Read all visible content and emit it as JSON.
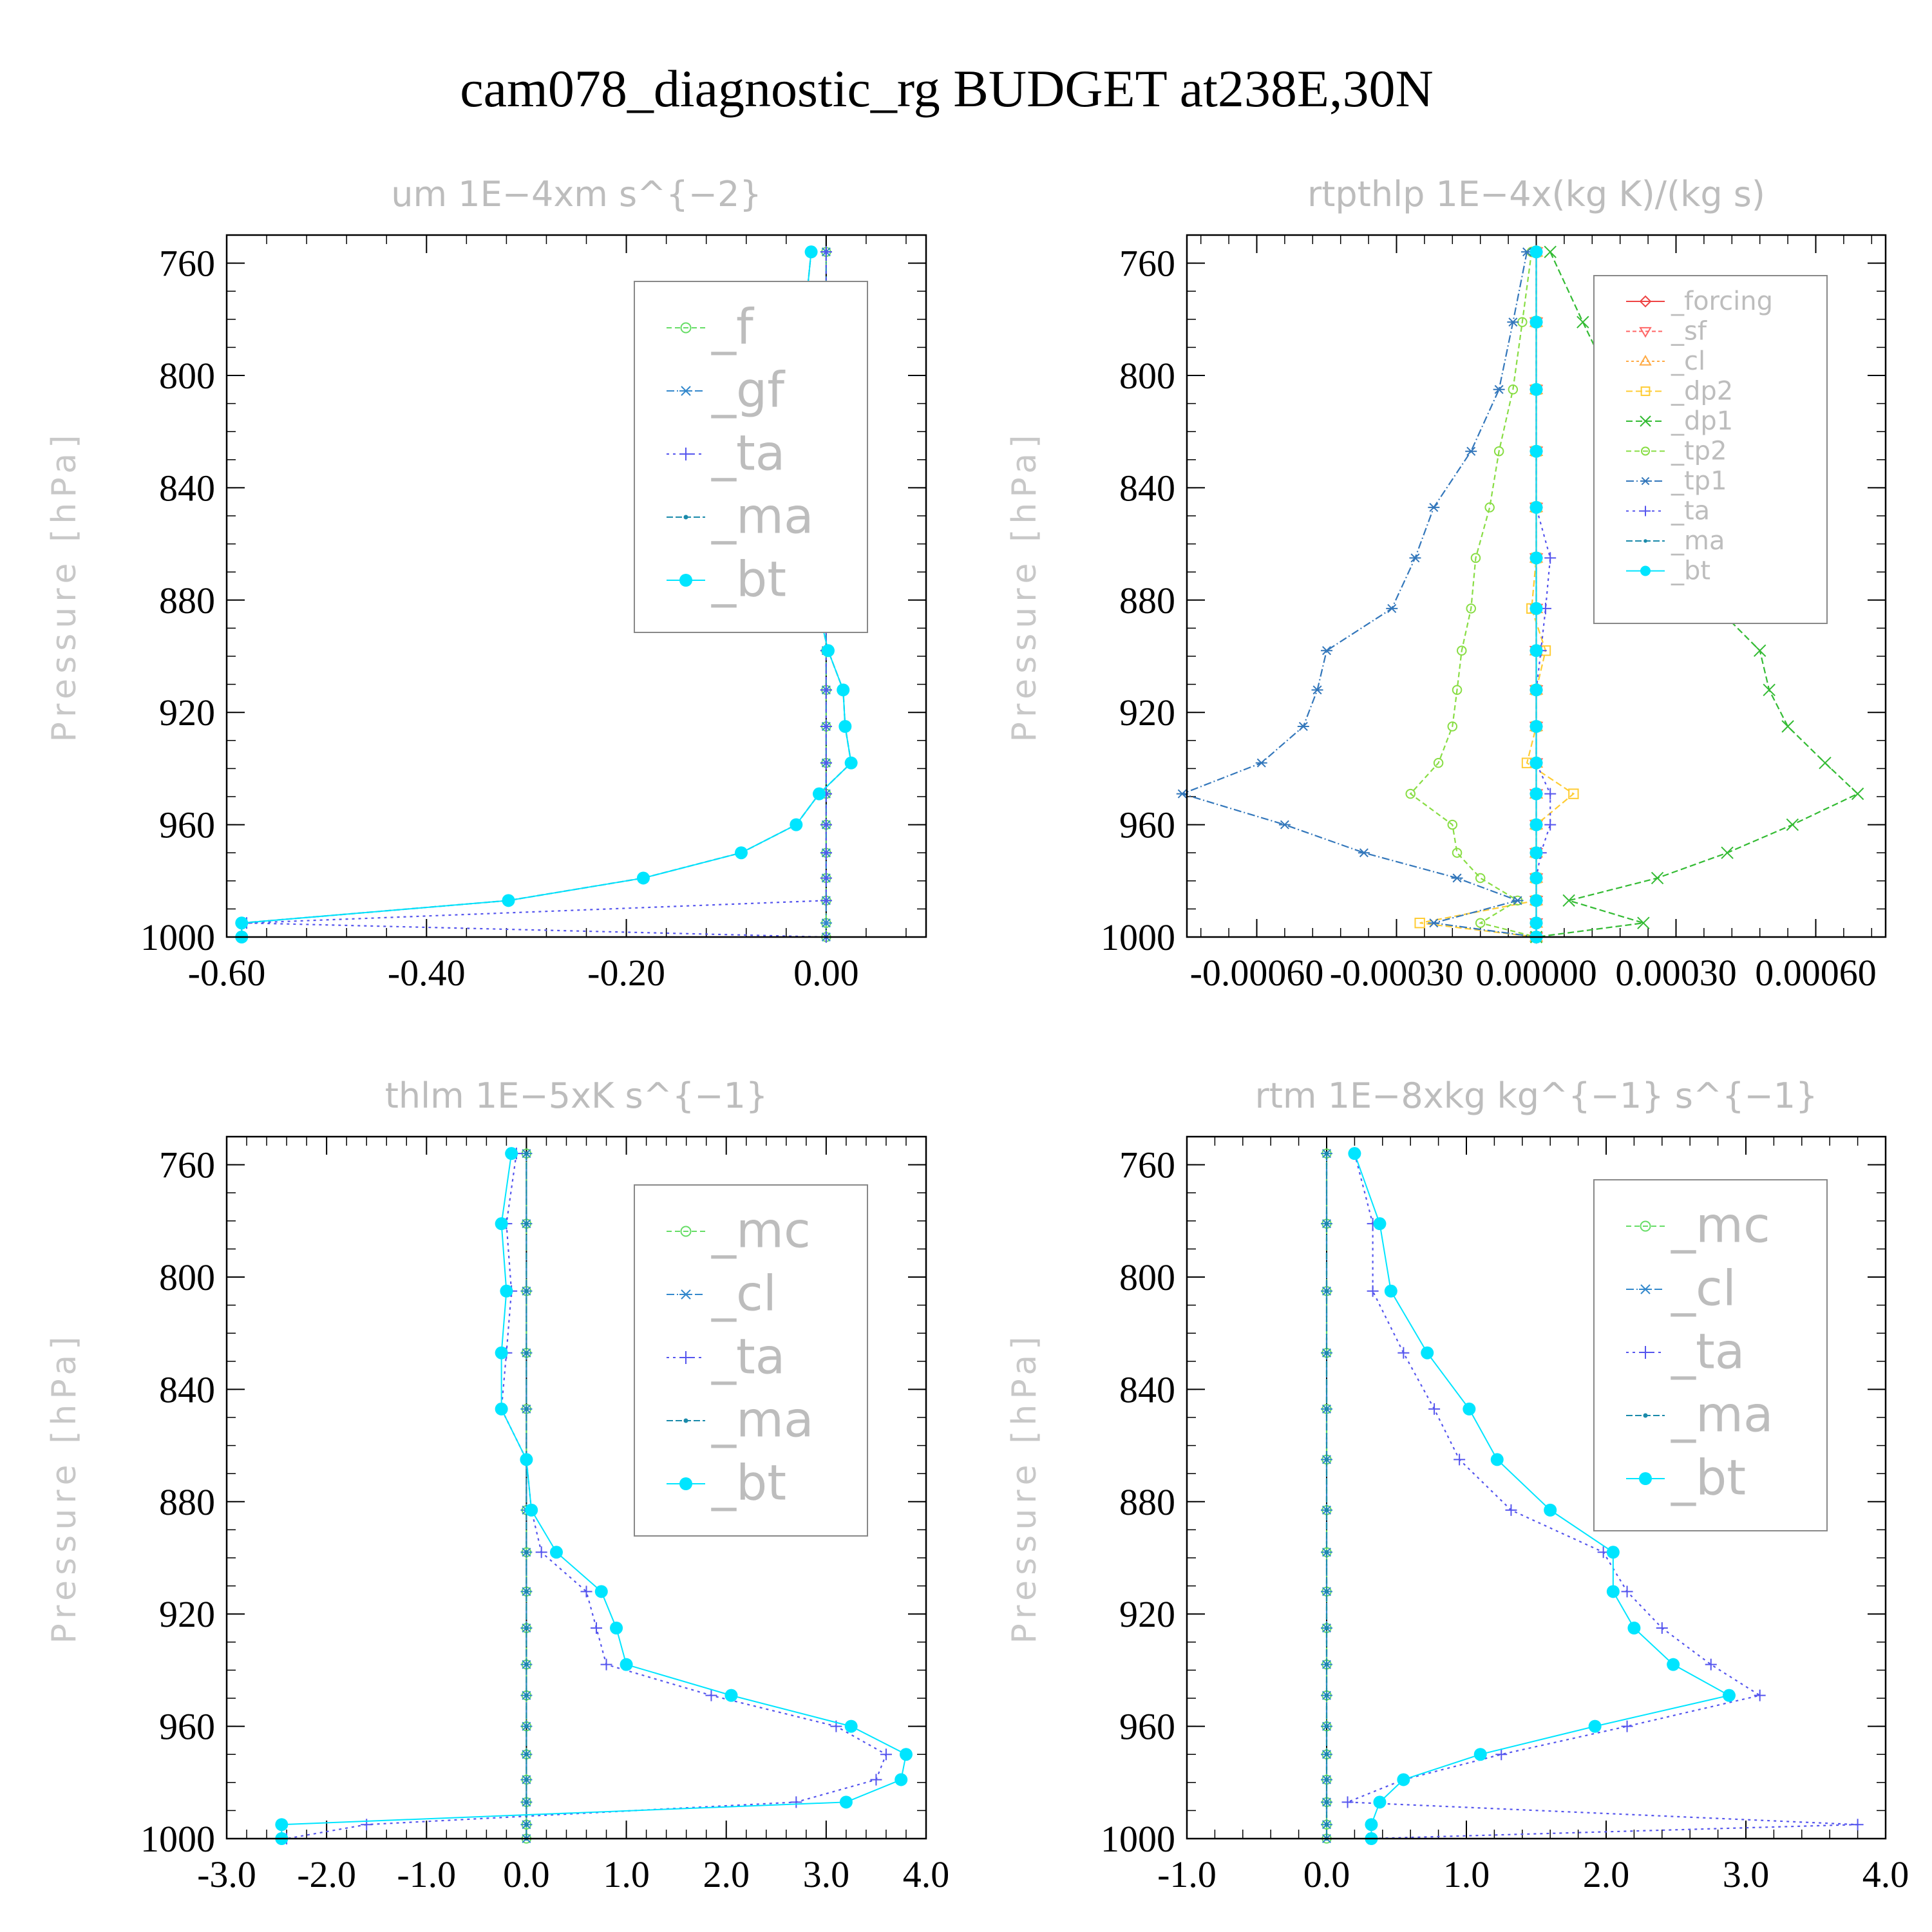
{
  "title": "cam078_diagnostic_rg  BUDGET at238E,30N",
  "chart_data": [
    {
      "type": "line",
      "title": "um   1E−4xm s^{−2}",
      "ylabel": "Pressure [hPa]",
      "xlim": [
        -0.6,
        0.1
      ],
      "ylim": [
        750,
        1000
      ],
      "y_reversed": true,
      "xticks": [
        "-0.60",
        "-0.40",
        "-0.20",
        "0.00"
      ],
      "xtick_values": [
        -0.6,
        -0.4,
        -0.2,
        0.0
      ],
      "yticks": [
        "760",
        "800",
        "840",
        "880",
        "920",
        "960",
        "1000"
      ],
      "ytick_values": [
        760,
        800,
        840,
        880,
        920,
        960,
        1000
      ],
      "levels": [
        756,
        781,
        805,
        827,
        847,
        865,
        883,
        898,
        912,
        925,
        938,
        949,
        960,
        970,
        979,
        987,
        995,
        1000
      ],
      "series": [
        {
          "name": "_f",
          "color": "#66dd66",
          "marker": "circle-open",
          "dash": "8,5",
          "values": [
            0,
            0,
            0,
            0,
            0,
            0,
            0,
            0,
            0,
            0,
            0,
            0,
            0,
            0,
            0,
            0,
            0,
            0
          ]
        },
        {
          "name": "_gf",
          "color": "#3388cc",
          "marker": "star",
          "dash": "12,4,2,4",
          "values": [
            0,
            0,
            0,
            0,
            0,
            0,
            0,
            0,
            0,
            0,
            0,
            0,
            0,
            0,
            0,
            0,
            0,
            0
          ]
        },
        {
          "name": "_ta",
          "color": "#5555ee",
          "marker": "plus",
          "dash": "4,6",
          "values": [
            0,
            0,
            0,
            0,
            0,
            0,
            0,
            0,
            0,
            0,
            0,
            0,
            0,
            0,
            0,
            0,
            -0.58,
            0
          ]
        },
        {
          "name": "_ma",
          "color": "#1a8aaa",
          "marker": "dot",
          "dash": "10,4",
          "values": [
            -0.015,
            -0.022,
            -0.027,
            -0.025,
            -0.026,
            -0.024,
            -0.008,
            0.002,
            0.017,
            0.019,
            0.025,
            -0.007,
            -0.03,
            -0.085,
            -0.183,
            -0.318,
            -0.585,
            -0.585
          ]
        },
        {
          "name": "_bt",
          "color": "#00e5ff",
          "marker": "filled-circle",
          "dash": "",
          "values": [
            -0.015,
            -0.022,
            -0.027,
            -0.025,
            -0.026,
            -0.024,
            -0.008,
            0.002,
            0.017,
            0.019,
            0.025,
            -0.007,
            -0.03,
            -0.085,
            -0.183,
            -0.318,
            -0.585,
            -0.585
          ]
        }
      ]
    },
    {
      "type": "line",
      "title": "rtpthlp   1E−4x(kg K)/(kg s)",
      "ylabel": "Pressure [hPa]",
      "xlim": [
        -0.00075,
        0.00075
      ],
      "ylim": [
        750,
        1000
      ],
      "y_reversed": true,
      "xticks": [
        "-0.00060",
        "-0.00030",
        "0.00000",
        "0.00030",
        "0.00060"
      ],
      "xtick_values": [
        -0.0006,
        -0.0003,
        0.0,
        0.0003,
        0.0006
      ],
      "yticks": [
        "760",
        "800",
        "840",
        "880",
        "920",
        "960",
        "1000"
      ],
      "ytick_values": [
        760,
        800,
        840,
        880,
        920,
        960,
        1000
      ],
      "levels": [
        756,
        781,
        805,
        827,
        847,
        865,
        883,
        898,
        912,
        925,
        938,
        949,
        960,
        970,
        979,
        987,
        995,
        1000
      ],
      "series": [
        {
          "name": "_forcing",
          "color": "#ee4444",
          "marker": "diamond",
          "dash": "",
          "values": [
            0,
            0,
            0,
            0,
            0,
            0,
            0,
            0,
            0,
            0,
            0,
            0,
            0,
            0,
            0,
            0,
            0,
            0
          ]
        },
        {
          "name": "_sf",
          "color": "#ff6666",
          "marker": "triangle-down",
          "dash": "6,4",
          "values": [
            0,
            0,
            0,
            0,
            0,
            0,
            0,
            0,
            0,
            0,
            0,
            0,
            0,
            0,
            0,
            0,
            0,
            0
          ]
        },
        {
          "name": "_cl",
          "color": "#ffaa44",
          "marker": "triangle-up",
          "dash": "4,4",
          "values": [
            0,
            0,
            0,
            0,
            0,
            0,
            0,
            0,
            0,
            0,
            0,
            0,
            0,
            0,
            0,
            0,
            0,
            0
          ]
        },
        {
          "name": "_dp2",
          "color": "#ffcc33",
          "marker": "square",
          "dash": "10,5",
          "values": [
            0,
            0,
            0,
            0,
            0,
            0,
            -1e-05,
            2e-05,
            0,
            0,
            -2e-05,
            8e-05,
            0,
            0,
            0,
            0,
            -0.00025,
            0
          ]
        },
        {
          "name": "_dp1",
          "color": "#33bb33",
          "marker": "cross",
          "dash": "10,5",
          "values": [
            3e-05,
            0.0001,
            0.00017,
            0.00024,
            0.00033,
            0.00036,
            0.00039,
            0.00048,
            0.0005,
            0.00054,
            0.00062,
            0.00069,
            0.00055,
            0.00041,
            0.00026,
            7e-05,
            0.00023,
            0
          ]
        },
        {
          "name": "_tp2",
          "color": "#88dd44",
          "marker": "circle-open",
          "dash": "8,5",
          "values": [
            -1e-05,
            -3e-05,
            -5e-05,
            -8e-05,
            -0.0001,
            -0.00013,
            -0.00014,
            -0.00016,
            -0.00017,
            -0.00018,
            -0.00021,
            -0.00027,
            -0.00018,
            -0.00017,
            -0.00012,
            -4e-05,
            -0.00012,
            0
          ]
        },
        {
          "name": "_tp1",
          "color": "#3377bb",
          "marker": "star",
          "dash": "12,4,2,4",
          "values": [
            -2e-05,
            -5e-05,
            -8e-05,
            -0.00014,
            -0.00022,
            -0.00026,
            -0.00031,
            -0.00045,
            -0.00047,
            -0.0005,
            -0.00059,
            -0.00076,
            -0.00054,
            -0.00037,
            -0.00017,
            -4e-05,
            -0.00022,
            0
          ]
        },
        {
          "name": "_ta",
          "color": "#5555ee",
          "marker": "plus",
          "dash": "4,6",
          "values": [
            0,
            0,
            0,
            0,
            0,
            3e-05,
            2e-05,
            1e-05,
            0,
            0,
            0,
            3e-05,
            3e-05,
            1e-05,
            0,
            0,
            0,
            0
          ]
        },
        {
          "name": "_ma",
          "color": "#1a8aaa",
          "marker": "dot",
          "dash": "10,4",
          "values": [
            0,
            0,
            0,
            0,
            0,
            0,
            0,
            0,
            0,
            0,
            0,
            0,
            0,
            0,
            0,
            0,
            0,
            0
          ]
        },
        {
          "name": "_bt",
          "color": "#00e5ff",
          "marker": "filled-circle",
          "dash": "",
          "values": [
            0,
            0,
            0,
            0,
            0,
            0,
            0,
            0,
            0,
            0,
            0,
            0,
            0,
            0,
            0,
            0,
            0,
            0
          ]
        }
      ]
    },
    {
      "type": "line",
      "title": "thlm   1E−5xK s^{−1}",
      "ylabel": "Pressure [hPa]",
      "xlim": [
        -3.0,
        4.0
      ],
      "ylim": [
        750,
        1000
      ],
      "y_reversed": true,
      "xticks": [
        "-3.0",
        "-2.0",
        "-1.0",
        "0.0",
        "1.0",
        "2.0",
        "3.0",
        "4.0"
      ],
      "xtick_values": [
        -3,
        -2,
        -1,
        0,
        1,
        2,
        3,
        4
      ],
      "yticks": [
        "760",
        "800",
        "840",
        "880",
        "920",
        "960",
        "1000"
      ],
      "ytick_values": [
        760,
        800,
        840,
        880,
        920,
        960,
        1000
      ],
      "levels": [
        756,
        781,
        805,
        827,
        847,
        865,
        883,
        898,
        912,
        925,
        938,
        949,
        960,
        970,
        979,
        987,
        995,
        1000
      ],
      "series": [
        {
          "name": "_mc",
          "color": "#66dd66",
          "marker": "circle-open",
          "dash": "8,5",
          "values": [
            0,
            0,
            0,
            0,
            0,
            0,
            0,
            0,
            0,
            0,
            0,
            0,
            0,
            0,
            0,
            0,
            0,
            0
          ]
        },
        {
          "name": "_cl",
          "color": "#3388cc",
          "marker": "star",
          "dash": "12,4,2,4",
          "values": [
            0,
            0,
            0,
            0,
            0,
            0,
            0,
            0,
            0,
            0,
            0,
            0,
            0,
            0,
            0,
            0,
            0,
            0
          ]
        },
        {
          "name": "_ta",
          "color": "#5555ee",
          "marker": "plus",
          "dash": "4,6",
          "values": [
            -0.1,
            -0.2,
            -0.15,
            -0.2,
            -0.25,
            0.0,
            0.05,
            0.15,
            0.6,
            0.7,
            0.8,
            1.85,
            3.1,
            3.6,
            3.5,
            2.7,
            -1.6,
            -2.4
          ]
        },
        {
          "name": "_ma",
          "color": "#1a8aaa",
          "marker": "dot",
          "dash": "10,4",
          "values": [
            0,
            0,
            0,
            0,
            0,
            0,
            0,
            0,
            0,
            0,
            0,
            0,
            0,
            0,
            0,
            0,
            0,
            0
          ]
        },
        {
          "name": "_bt",
          "color": "#00e5ff",
          "marker": "filled-circle",
          "dash": "",
          "values": [
            -0.15,
            -0.25,
            -0.2,
            -0.25,
            -0.25,
            0.0,
            0.05,
            0.3,
            0.75,
            0.9,
            1.0,
            2.05,
            3.25,
            3.8,
            3.75,
            3.2,
            -2.45,
            -2.45
          ]
        }
      ]
    },
    {
      "type": "line",
      "title": "rtm   1E−8xkg kg^{−1} s^{−1}",
      "ylabel": "Pressure [hPa]",
      "xlim": [
        -1.0,
        4.0
      ],
      "ylim": [
        750,
        1000
      ],
      "y_reversed": true,
      "xticks": [
        "-1.0",
        "0.0",
        "1.0",
        "2.0",
        "3.0",
        "4.0"
      ],
      "xtick_values": [
        -1,
        0,
        1,
        2,
        3,
        4
      ],
      "yticks": [
        "760",
        "800",
        "840",
        "880",
        "920",
        "960",
        "1000"
      ],
      "ytick_values": [
        760,
        800,
        840,
        880,
        920,
        960,
        1000
      ],
      "levels": [
        756,
        781,
        805,
        827,
        847,
        865,
        883,
        898,
        912,
        925,
        938,
        949,
        960,
        970,
        979,
        987,
        995,
        1000
      ],
      "series": [
        {
          "name": "_mc",
          "color": "#66dd66",
          "marker": "circle-open",
          "dash": "8,5",
          "values": [
            0,
            0,
            0,
            0,
            0,
            0,
            0,
            0,
            0,
            0,
            0,
            0,
            0,
            0,
            0,
            0,
            0,
            0
          ]
        },
        {
          "name": "_cl",
          "color": "#3388cc",
          "marker": "star",
          "dash": "12,4,2,4",
          "values": [
            0,
            0,
            0,
            0,
            0,
            0,
            0,
            0,
            0,
            0,
            0,
            0,
            0,
            0,
            0,
            0,
            0,
            0
          ]
        },
        {
          "name": "_ta",
          "color": "#5555ee",
          "marker": "plus",
          "dash": "4,6",
          "values": [
            0.2,
            0.33,
            0.33,
            0.55,
            0.77,
            0.95,
            1.32,
            1.98,
            2.15,
            2.4,
            2.75,
            3.1,
            2.15,
            1.25,
            0.55,
            0.15,
            3.8,
            0.3
          ]
        },
        {
          "name": "_ma",
          "color": "#1a8aaa",
          "marker": "dot",
          "dash": "10,4",
          "values": [
            0,
            0,
            0,
            0,
            0,
            0,
            0,
            0,
            0,
            0,
            0,
            0,
            0,
            0,
            0,
            0,
            0,
            0
          ]
        },
        {
          "name": "_bt",
          "color": "#00e5ff",
          "marker": "filled-circle",
          "dash": "",
          "values": [
            0.2,
            0.38,
            0.46,
            0.72,
            1.02,
            1.22,
            1.6,
            2.05,
            2.05,
            2.2,
            2.48,
            2.88,
            1.92,
            1.1,
            0.55,
            0.38,
            0.32,
            0.32
          ]
        }
      ]
    }
  ]
}
